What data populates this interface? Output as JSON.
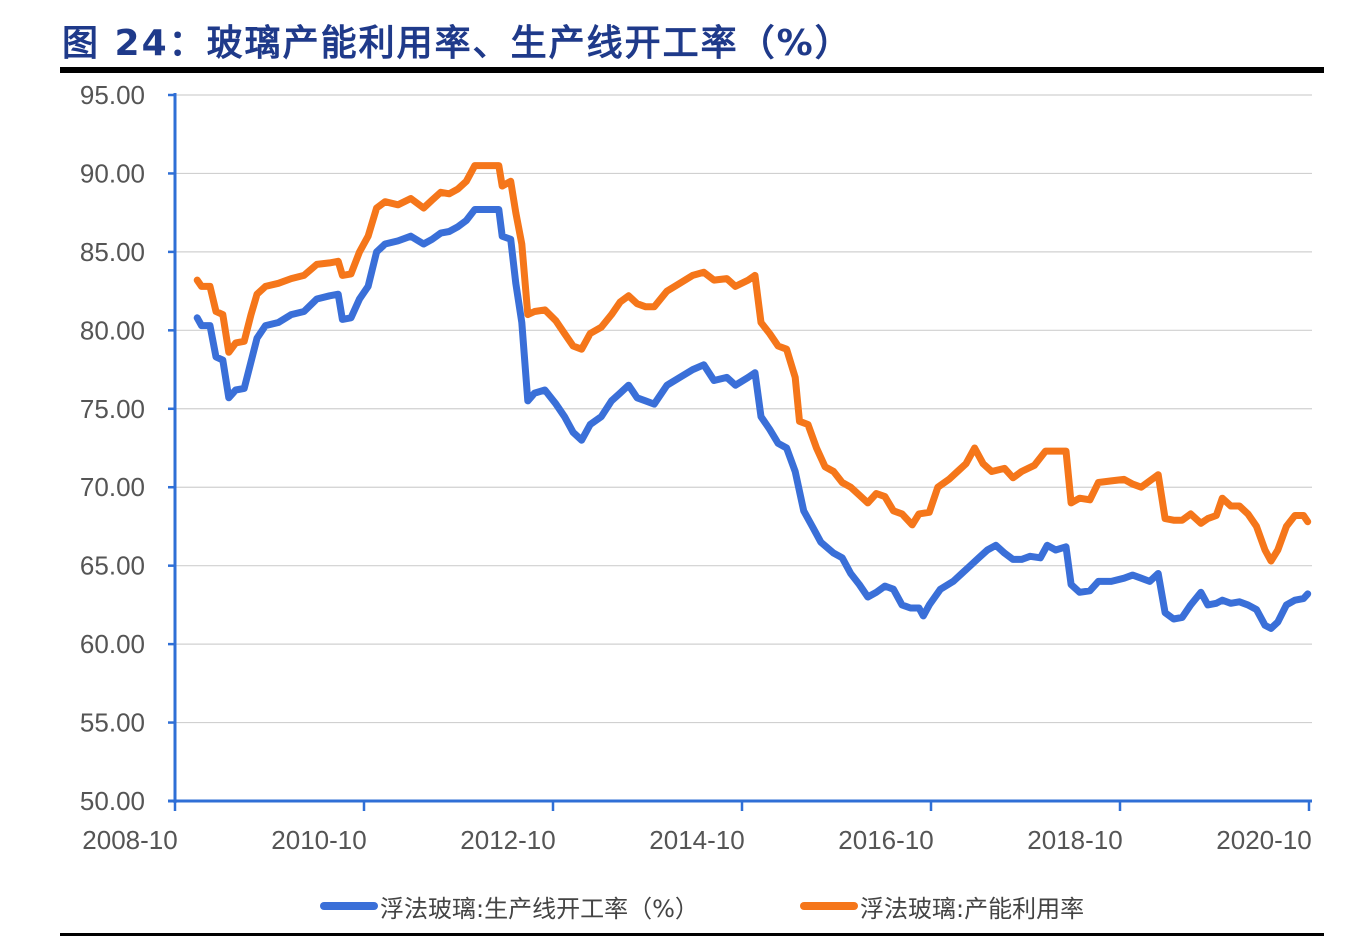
{
  "title": "图 24：玻璃产能利用率、生产线开工率（%）",
  "colors": {
    "title": "#1f3a8a",
    "axis": "#2f6fd6",
    "grid": "#d0d0d0",
    "series_blue": "#3a6fd8",
    "series_orange": "#f5761a",
    "tick_label": "#555555"
  },
  "legend": {
    "items": [
      {
        "label": "浮法玻璃:生产线开工率（%）",
        "color": "#3a6fd8"
      },
      {
        "label": "浮法玻璃:产能利用率",
        "color": "#f5761a"
      }
    ]
  },
  "chart_data": {
    "type": "line",
    "title": "图 24：玻璃产能利用率、生产线开工率（%）",
    "xlabel": "",
    "ylabel": "",
    "ylim": [
      50,
      95
    ],
    "yticks": [
      "95.00",
      "90.00",
      "85.00",
      "80.00",
      "75.00",
      "70.00",
      "65.00",
      "60.00",
      "55.00",
      "50.00"
    ],
    "xticks": [
      "2008-10",
      "2010-10",
      "2012-10",
      "2014-10",
      "2016-10",
      "2018-10",
      "2020-10"
    ],
    "x_range": [
      2008.79,
      2020.83
    ],
    "grid": {
      "horizontal": true,
      "vertical": false
    },
    "legend_position": "bottom",
    "series": [
      {
        "name": "浮法玻璃:生产线开工率（%）",
        "color": "#3a6fd8",
        "points": [
          [
            2009.05,
            80.8
          ],
          [
            2009.1,
            80.3
          ],
          [
            2009.2,
            80.3
          ],
          [
            2009.27,
            78.3
          ],
          [
            2009.35,
            78.1
          ],
          [
            2009.42,
            75.7
          ],
          [
            2009.5,
            76.2
          ],
          [
            2009.6,
            76.3
          ],
          [
            2009.68,
            78.0
          ],
          [
            2009.75,
            79.5
          ],
          [
            2009.85,
            80.3
          ],
          [
            2010.0,
            80.5
          ],
          [
            2010.15,
            81.0
          ],
          [
            2010.3,
            81.2
          ],
          [
            2010.45,
            82.0
          ],
          [
            2010.6,
            82.2
          ],
          [
            2010.7,
            82.3
          ],
          [
            2010.75,
            80.7
          ],
          [
            2010.85,
            80.8
          ],
          [
            2010.95,
            82.0
          ],
          [
            2011.05,
            82.8
          ],
          [
            2011.15,
            85.0
          ],
          [
            2011.25,
            85.5
          ],
          [
            2011.4,
            85.7
          ],
          [
            2011.55,
            86.0
          ],
          [
            2011.7,
            85.5
          ],
          [
            2011.8,
            85.8
          ],
          [
            2011.9,
            86.2
          ],
          [
            2012.0,
            86.3
          ],
          [
            2012.1,
            86.6
          ],
          [
            2012.2,
            87.0
          ],
          [
            2012.3,
            87.7
          ],
          [
            2012.45,
            87.7
          ],
          [
            2012.58,
            87.7
          ],
          [
            2012.62,
            86.0
          ],
          [
            2012.72,
            85.8
          ],
          [
            2012.78,
            83.0
          ],
          [
            2012.85,
            80.5
          ],
          [
            2012.92,
            75.5
          ],
          [
            2013.0,
            76.0
          ],
          [
            2013.12,
            76.2
          ],
          [
            2013.25,
            75.3
          ],
          [
            2013.35,
            74.5
          ],
          [
            2013.45,
            73.5
          ],
          [
            2013.55,
            73.0
          ],
          [
            2013.65,
            74.0
          ],
          [
            2013.78,
            74.5
          ],
          [
            2013.9,
            75.5
          ],
          [
            2014.0,
            76.0
          ],
          [
            2014.1,
            76.5
          ],
          [
            2014.2,
            75.7
          ],
          [
            2014.3,
            75.5
          ],
          [
            2014.4,
            75.3
          ],
          [
            2014.55,
            76.5
          ],
          [
            2014.7,
            77.0
          ],
          [
            2014.85,
            77.5
          ],
          [
            2014.98,
            77.8
          ],
          [
            2015.1,
            76.8
          ],
          [
            2015.25,
            77.0
          ],
          [
            2015.35,
            76.5
          ],
          [
            2015.5,
            77.0
          ],
          [
            2015.58,
            77.3
          ],
          [
            2015.65,
            74.5
          ],
          [
            2015.75,
            73.7
          ],
          [
            2015.85,
            72.8
          ],
          [
            2015.95,
            72.5
          ],
          [
            2016.05,
            71.0
          ],
          [
            2016.15,
            68.5
          ],
          [
            2016.25,
            67.5
          ],
          [
            2016.35,
            66.5
          ],
          [
            2016.5,
            65.8
          ],
          [
            2016.6,
            65.5
          ],
          [
            2016.7,
            64.5
          ],
          [
            2016.8,
            63.8
          ],
          [
            2016.9,
            63.0
          ],
          [
            2017.0,
            63.3
          ],
          [
            2017.1,
            63.7
          ],
          [
            2017.2,
            63.5
          ],
          [
            2017.3,
            62.5
          ],
          [
            2017.4,
            62.3
          ],
          [
            2017.5,
            62.3
          ],
          [
            2017.55,
            61.8
          ],
          [
            2017.62,
            62.5
          ],
          [
            2017.75,
            63.5
          ],
          [
            2017.9,
            64.0
          ],
          [
            2018.0,
            64.5
          ],
          [
            2018.1,
            65.0
          ],
          [
            2018.2,
            65.5
          ],
          [
            2018.3,
            66.0
          ],
          [
            2018.4,
            66.3
          ],
          [
            2018.5,
            65.8
          ],
          [
            2018.6,
            65.4
          ],
          [
            2018.7,
            65.4
          ],
          [
            2018.8,
            65.6
          ],
          [
            2018.92,
            65.5
          ],
          [
            2019.0,
            66.3
          ],
          [
            2019.1,
            66.0
          ],
          [
            2019.22,
            66.2
          ],
          [
            2019.28,
            63.8
          ],
          [
            2019.38,
            63.3
          ],
          [
            2019.5,
            63.4
          ],
          [
            2019.6,
            64.0
          ],
          [
            2019.75,
            64.0
          ],
          [
            2019.9,
            64.2
          ],
          [
            2020.0,
            64.4
          ],
          [
            2020.1,
            64.2
          ],
          [
            2020.2,
            64.0
          ],
          [
            2020.3,
            64.5
          ],
          [
            2020.38,
            62.0
          ],
          [
            2020.48,
            61.6
          ],
          [
            2020.58,
            61.7
          ],
          [
            2020.68,
            62.5
          ],
          [
            2020.8,
            63.3
          ],
          [
            2020.88,
            62.5
          ],
          [
            2020.98,
            62.6
          ],
          [
            2021.05,
            62.8
          ],
          [
            2021.15,
            62.6
          ],
          [
            2021.25,
            62.7
          ],
          [
            2021.35,
            62.5
          ],
          [
            2021.45,
            62.2
          ],
          [
            2021.55,
            61.2
          ],
          [
            2021.62,
            61.0
          ],
          [
            2021.7,
            61.4
          ],
          [
            2021.8,
            62.5
          ],
          [
            2021.9,
            62.8
          ],
          [
            2022.0,
            62.9
          ],
          [
            2022.05,
            63.2
          ]
        ]
      },
      {
        "name": "浮法玻璃:产能利用率",
        "color": "#f5761a",
        "points": [
          [
            2009.05,
            83.2
          ],
          [
            2009.1,
            82.8
          ],
          [
            2009.2,
            82.8
          ],
          [
            2009.27,
            81.2
          ],
          [
            2009.35,
            81.0
          ],
          [
            2009.42,
            78.6
          ],
          [
            2009.5,
            79.2
          ],
          [
            2009.6,
            79.3
          ],
          [
            2009.68,
            81.0
          ],
          [
            2009.75,
            82.3
          ],
          [
            2009.85,
            82.8
          ],
          [
            2010.0,
            83.0
          ],
          [
            2010.15,
            83.3
          ],
          [
            2010.3,
            83.5
          ],
          [
            2010.45,
            84.2
          ],
          [
            2010.6,
            84.3
          ],
          [
            2010.7,
            84.4
          ],
          [
            2010.75,
            83.5
          ],
          [
            2010.85,
            83.6
          ],
          [
            2010.95,
            85.0
          ],
          [
            2011.05,
            86.0
          ],
          [
            2011.15,
            87.8
          ],
          [
            2011.25,
            88.2
          ],
          [
            2011.4,
            88.0
          ],
          [
            2011.55,
            88.4
          ],
          [
            2011.7,
            87.8
          ],
          [
            2011.8,
            88.3
          ],
          [
            2011.9,
            88.8
          ],
          [
            2012.0,
            88.7
          ],
          [
            2012.1,
            89.0
          ],
          [
            2012.2,
            89.5
          ],
          [
            2012.3,
            90.5
          ],
          [
            2012.45,
            90.5
          ],
          [
            2012.58,
            90.5
          ],
          [
            2012.62,
            89.2
          ],
          [
            2012.72,
            89.5
          ],
          [
            2012.78,
            87.5
          ],
          [
            2012.85,
            85.5
          ],
          [
            2012.92,
            81.0
          ],
          [
            2013.0,
            81.2
          ],
          [
            2013.12,
            81.3
          ],
          [
            2013.25,
            80.6
          ],
          [
            2013.35,
            79.8
          ],
          [
            2013.45,
            79.0
          ],
          [
            2013.55,
            78.8
          ],
          [
            2013.65,
            79.8
          ],
          [
            2013.78,
            80.2
          ],
          [
            2013.9,
            81.0
          ],
          [
            2014.0,
            81.8
          ],
          [
            2014.1,
            82.2
          ],
          [
            2014.2,
            81.7
          ],
          [
            2014.3,
            81.5
          ],
          [
            2014.4,
            81.5
          ],
          [
            2014.55,
            82.5
          ],
          [
            2014.7,
            83.0
          ],
          [
            2014.85,
            83.5
          ],
          [
            2014.98,
            83.7
          ],
          [
            2015.1,
            83.2
          ],
          [
            2015.25,
            83.3
          ],
          [
            2015.35,
            82.8
          ],
          [
            2015.5,
            83.2
          ],
          [
            2015.58,
            83.5
          ],
          [
            2015.65,
            80.5
          ],
          [
            2015.75,
            79.8
          ],
          [
            2015.85,
            79.0
          ],
          [
            2015.95,
            78.8
          ],
          [
            2016.05,
            77.0
          ],
          [
            2016.1,
            74.2
          ],
          [
            2016.2,
            74.0
          ],
          [
            2016.3,
            72.5
          ],
          [
            2016.4,
            71.3
          ],
          [
            2016.5,
            71.0
          ],
          [
            2016.6,
            70.3
          ],
          [
            2016.7,
            70.0
          ],
          [
            2016.8,
            69.5
          ],
          [
            2016.9,
            69.0
          ],
          [
            2017.0,
            69.6
          ],
          [
            2017.1,
            69.4
          ],
          [
            2017.2,
            68.5
          ],
          [
            2017.3,
            68.3
          ],
          [
            2017.42,
            67.6
          ],
          [
            2017.5,
            68.3
          ],
          [
            2017.62,
            68.4
          ],
          [
            2017.72,
            70.0
          ],
          [
            2017.85,
            70.5
          ],
          [
            2017.95,
            71.0
          ],
          [
            2018.05,
            71.5
          ],
          [
            2018.15,
            72.5
          ],
          [
            2018.25,
            71.5
          ],
          [
            2018.35,
            71.0
          ],
          [
            2018.5,
            71.2
          ],
          [
            2018.6,
            70.6
          ],
          [
            2018.7,
            71.0
          ],
          [
            2018.85,
            71.4
          ],
          [
            2018.98,
            72.3
          ],
          [
            2019.1,
            72.3
          ],
          [
            2019.22,
            72.3
          ],
          [
            2019.28,
            69.0
          ],
          [
            2019.38,
            69.3
          ],
          [
            2019.5,
            69.2
          ],
          [
            2019.6,
            70.3
          ],
          [
            2019.75,
            70.4
          ],
          [
            2019.9,
            70.5
          ],
          [
            2020.0,
            70.2
          ],
          [
            2020.1,
            70.0
          ],
          [
            2020.2,
            70.4
          ],
          [
            2020.3,
            70.8
          ],
          [
            2020.38,
            68.0
          ],
          [
            2020.48,
            67.9
          ],
          [
            2020.58,
            67.9
          ],
          [
            2020.68,
            68.3
          ],
          [
            2020.8,
            67.7
          ],
          [
            2020.88,
            68.0
          ],
          [
            2020.98,
            68.2
          ],
          [
            2021.05,
            69.3
          ],
          [
            2021.15,
            68.8
          ],
          [
            2021.25,
            68.8
          ],
          [
            2021.35,
            68.3
          ],
          [
            2021.45,
            67.5
          ],
          [
            2021.55,
            66.0
          ],
          [
            2021.62,
            65.3
          ],
          [
            2021.7,
            66.0
          ],
          [
            2021.8,
            67.5
          ],
          [
            2021.9,
            68.2
          ],
          [
            2022.0,
            68.2
          ],
          [
            2022.05,
            67.8
          ]
        ]
      }
    ]
  }
}
